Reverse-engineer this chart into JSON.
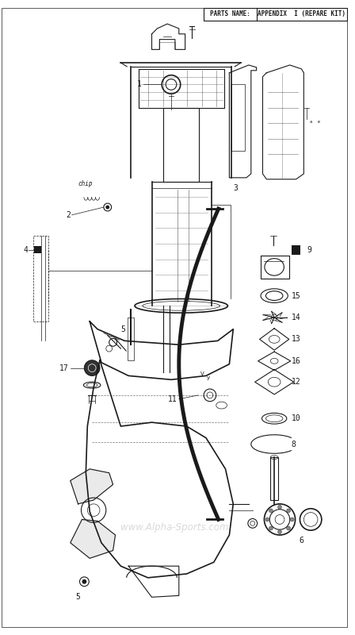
{
  "header_left": "PARTS NAME:",
  "header_right": "APPENDIX  I (REPARE KIT)",
  "watermark": "www.Alpha-Sports.com",
  "bg_color": "#ffffff",
  "line_color": "#1a1a1a",
  "gray_color": "#888888",
  "light_gray": "#cccccc"
}
